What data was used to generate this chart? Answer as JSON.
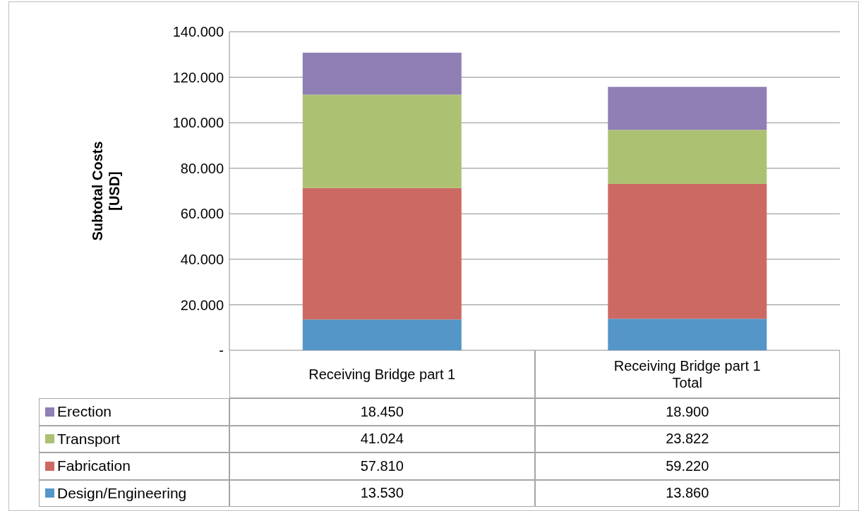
{
  "chart_data": {
    "type": "bar",
    "stacked": true,
    "ylabel": "Subtotal Costs\n[USD]",
    "categories": [
      "Receiving Bridge part 1",
      "Receiving Bridge part 1\nTotal"
    ],
    "series": [
      {
        "name": "Design/Engineering",
        "color": "#5596c8",
        "values": [
          13530,
          13860
        ],
        "value_labels": [
          "13.530",
          "13.860"
        ]
      },
      {
        "name": "Fabrication",
        "color": "#cd6963",
        "values": [
          57810,
          59220
        ],
        "value_labels": [
          "57.810",
          "59.220"
        ]
      },
      {
        "name": "Transport",
        "color": "#adc173",
        "values": [
          41024,
          23822
        ],
        "value_labels": [
          "41.024",
          "23.822"
        ]
      },
      {
        "name": "Erection",
        "color": "#8f7fb4",
        "values": [
          18450,
          18900
        ],
        "value_labels": [
          "18.450",
          "18.900"
        ]
      }
    ],
    "ylim": [
      0,
      140000
    ],
    "yticks": [
      {
        "value": 0,
        "label": "-"
      },
      {
        "value": 20000,
        "label": "20.000"
      },
      {
        "value": 40000,
        "label": "40.000"
      },
      {
        "value": 60000,
        "label": "60.000"
      },
      {
        "value": 80000,
        "label": "80.000"
      },
      {
        "value": 100000,
        "label": "100.000"
      },
      {
        "value": 120000,
        "label": "120.000"
      },
      {
        "value": 140000,
        "label": "140.000"
      }
    ],
    "grid": "y",
    "legend": "bottom left"
  }
}
